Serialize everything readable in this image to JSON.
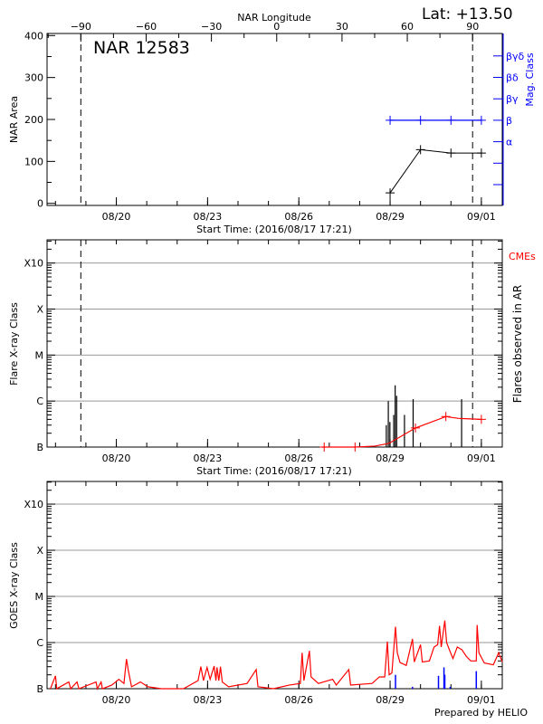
{
  "header": {
    "lat_label": "Lat: +13.50",
    "ar_label": "NAR 12583",
    "longitude_axis_label": "NAR Longitude"
  },
  "footer": {
    "prepared_by": "Prepared by HELIO"
  },
  "colors": {
    "axis": "#000000",
    "grid": "#999999",
    "mag_class": "#0000ff",
    "cme": "#ff0000",
    "goes_long": "#ff0000",
    "goes_short": "#0000ff"
  },
  "chart_data": [
    {
      "type": "line",
      "panel": "nar-area",
      "ylabel": "NAR Area",
      "y2label": "Mag. Class",
      "xlabel": "Start Time: (2016/08/17 17:21)",
      "xlim": [
        "2016-08-17 17:21",
        "2016-09-01 16:30"
      ],
      "ylim": [
        -5,
        405
      ],
      "yticks": [
        0,
        100,
        200,
        300,
        400
      ],
      "xticks": [
        {
          "date": "2016-08-20 00:00",
          "label": "08/20"
        },
        {
          "date": "2016-08-23 00:00",
          "label": "08/23"
        },
        {
          "date": "2016-08-26 00:00",
          "label": "08/26"
        },
        {
          "date": "2016-08-29 00:00",
          "label": "08/29"
        },
        {
          "date": "2016-09-01 00:00",
          "label": "09/01"
        }
      ],
      "longitude_ticks": [
        {
          "lon": -90,
          "label": "−90"
        },
        {
          "lon": -60,
          "label": "−60"
        },
        {
          "lon": -30,
          "label": "−30"
        },
        {
          "lon": 0,
          "label": "0"
        },
        {
          "lon": 30,
          "label": "30"
        },
        {
          "lon": 60,
          "label": "60"
        },
        {
          "lon": 90,
          "label": "90"
        }
      ],
      "limb_crossings": {
        "east_minus90": "2016-08-18 20:00",
        "west_plus90": "2016-08-31 17:05"
      },
      "area_series": [
        [
          "2016-08-29 00:00",
          25
        ],
        [
          "2016-08-30 00:00",
          128
        ],
        [
          "2016-08-31 00:00",
          120
        ],
        [
          "2016-09-01 00:00",
          120
        ]
      ],
      "mag_class_levels": [
        "",
        "",
        "α",
        "β",
        "βγ",
        "βδ",
        "βγδ"
      ],
      "mag_class_series": [
        [
          "2016-08-29 00:00",
          "β"
        ],
        [
          "2016-08-30 00:00",
          "β"
        ],
        [
          "2016-08-31 00:00",
          "β"
        ],
        [
          "2016-09-01 00:00",
          "β"
        ]
      ]
    },
    {
      "type": "bar",
      "panel": "flares",
      "ylabel": "Flare X-ray Class",
      "y2label": "Flares observed in AR",
      "legend_cme": "CMEs",
      "xlabel": "Start Time: (2016/08/17 17:21)",
      "yscale": "log",
      "ylim": [
        1e-07,
        0.0032
      ],
      "yticks": [
        {
          "v": 1e-07,
          "label": "B"
        },
        {
          "v": 1e-06,
          "label": "C"
        },
        {
          "v": 1e-05,
          "label": "M"
        },
        {
          "v": 0.0001,
          "label": "X"
        },
        {
          "v": 0.001,
          "label": "X10"
        }
      ],
      "grid": true,
      "flares": [
        [
          "2016-08-28 21:00",
          3e-07
        ],
        [
          "2016-08-28 22:35",
          1e-06
        ],
        [
          "2016-08-28 23:50",
          3.5e-07
        ],
        [
          "2016-08-29 02:50",
          5e-07
        ],
        [
          "2016-08-29 04:00",
          2.2e-06
        ],
        [
          "2016-08-29 05:10",
          1.3e-06
        ],
        [
          "2016-08-29 11:20",
          5e-07
        ],
        [
          "2016-08-29 18:10",
          1.1e-06
        ],
        [
          "2016-08-31 08:25",
          1.1e-06
        ]
      ],
      "cme_series": [
        [
          "2016-08-26 18:00",
          1e-07
        ],
        [
          "2016-08-26 20:00",
          1e-07
        ],
        [
          "2016-08-27 20:20",
          1e-07
        ],
        [
          "2016-08-28 12:00",
          1.05e-07
        ],
        [
          "2016-08-28 23:00",
          1.2e-07
        ],
        [
          "2016-08-29 20:00",
          2.6e-07
        ],
        [
          "2016-08-30 20:00",
          4.6e-07
        ],
        [
          "2016-08-31 06:00",
          4.2e-07
        ],
        [
          "2016-09-01 00:00",
          4e-07
        ]
      ],
      "cme_markers": [
        "2016-08-26 20:00",
        "2016-08-27 20:20",
        "2016-08-29 20:00",
        "2016-08-30 20:00",
        "2016-09-01 00:00"
      ]
    },
    {
      "type": "line",
      "panel": "goes",
      "ylabel": "GOES X-ray Class",
      "yscale": "log",
      "ylim": [
        1e-07,
        0.0031
      ],
      "yticks": [
        {
          "v": 1e-07,
          "label": "B"
        },
        {
          "v": 1e-06,
          "label": "C"
        },
        {
          "v": 1e-05,
          "label": "M"
        },
        {
          "v": 0.0001,
          "label": "X"
        },
        {
          "v": 0.001,
          "label": "X10"
        }
      ],
      "grid": true,
      "long_channel": [
        [
          "2016-08-17 20:00",
          9e-08
        ],
        [
          "2016-08-18 00:00",
          1.9e-07
        ],
        [
          "2016-08-18 01:00",
          9e-08
        ],
        [
          "2016-08-18 10:30",
          1.4e-07
        ],
        [
          "2016-08-18 12:00",
          9e-08
        ],
        [
          "2016-08-18 17:00",
          1.4e-07
        ],
        [
          "2016-08-18 18:30",
          9e-08
        ],
        [
          "2016-08-19 08:00",
          1.4e-07
        ],
        [
          "2016-08-19 09:00",
          9e-08
        ],
        [
          "2016-08-19 12:00",
          1.4e-07
        ],
        [
          "2016-08-19 13:00",
          9e-08
        ],
        [
          "2016-08-19 20:30",
          1.2e-07
        ],
        [
          "2016-08-20 02:00",
          1.6e-07
        ],
        [
          "2016-08-20 06:00",
          1.3e-07
        ],
        [
          "2016-08-20 08:00",
          4.4e-07
        ],
        [
          "2016-08-20 09:20",
          2.6e-07
        ],
        [
          "2016-08-20 12:00",
          1.1e-07
        ],
        [
          "2016-08-20 19:00",
          1.4e-07
        ],
        [
          "2016-08-21 01:00",
          1.1e-07
        ],
        [
          "2016-08-21 11:30",
          9e-08
        ],
        [
          "2016-08-22 05:00",
          9e-08
        ],
        [
          "2016-08-22 16:30",
          1.5e-07
        ],
        [
          "2016-08-22 18:40",
          3e-07
        ],
        [
          "2016-08-22 20:45",
          1.5e-07
        ],
        [
          "2016-08-22 23:35",
          2.9e-07
        ],
        [
          "2016-08-23 02:00",
          1.6e-07
        ],
        [
          "2016-08-23 05:10",
          3.1e-07
        ],
        [
          "2016-08-23 06:35",
          1.5e-07
        ],
        [
          "2016-08-23 07:25",
          2.9e-07
        ],
        [
          "2016-08-23 08:50",
          1.5e-07
        ],
        [
          "2016-08-23 10:10",
          3e-07
        ],
        [
          "2016-08-23 11:35",
          1.4e-07
        ],
        [
          "2016-08-23 16:35",
          1.1e-07
        ],
        [
          "2016-08-24 07:10",
          1.3e-07
        ],
        [
          "2016-08-24 14:20",
          2.6e-07
        ],
        [
          "2016-08-24 15:45",
          1.1e-07
        ],
        [
          "2016-08-25 04:00",
          9e-08
        ],
        [
          "2016-08-25 16:40",
          1.2e-07
        ],
        [
          "2016-08-26 01:10",
          1.3e-07
        ],
        [
          "2016-08-26 02:35",
          6e-07
        ],
        [
          "2016-08-26 04:00",
          1.5e-07
        ],
        [
          "2016-08-26 08:20",
          6.6e-07
        ],
        [
          "2016-08-26 09:40",
          1.8e-07
        ],
        [
          "2016-08-26 15:25",
          1.3e-07
        ],
        [
          "2016-08-27 02:40",
          1.6e-07
        ],
        [
          "2016-08-27 05:30",
          1.2e-07
        ],
        [
          "2016-08-27 15:25",
          2.6e-07
        ],
        [
          "2016-08-27 16:50",
          1.2e-07
        ],
        [
          "2016-08-28 09:50",
          1.3e-07
        ],
        [
          "2016-08-28 15:30",
          1.8e-07
        ],
        [
          "2016-08-28 19:45",
          1.8e-07
        ],
        [
          "2016-08-28 21:50",
          1.05e-06
        ],
        [
          "2016-08-28 23:15",
          2e-07
        ],
        [
          "2016-08-29 01:25",
          2.2e-07
        ],
        [
          "2016-08-29 04:15",
          2.2e-06
        ],
        [
          "2016-08-29 05:40",
          6e-07
        ],
        [
          "2016-08-29 07:50",
          3.7e-07
        ],
        [
          "2016-08-29 12:45",
          3.2e-07
        ],
        [
          "2016-08-29 17:40",
          1.2e-06
        ],
        [
          "2016-08-29 19:05",
          3.8e-07
        ],
        [
          "2016-08-30 00:00",
          9e-07
        ],
        [
          "2016-08-30 01:25",
          3.8e-07
        ],
        [
          "2016-08-30 07:00",
          4e-07
        ],
        [
          "2016-08-30 10:40",
          8e-07
        ],
        [
          "2016-08-30 13:30",
          9e-07
        ],
        [
          "2016-08-30 15:00",
          2.3e-06
        ],
        [
          "2016-08-30 16:20",
          8e-07
        ],
        [
          "2016-08-30 19:10",
          3e-06
        ],
        [
          "2016-08-30 20:35",
          1e-06
        ],
        [
          "2016-08-30 22:45",
          7e-07
        ],
        [
          "2016-08-31 01:35",
          4.5e-07
        ],
        [
          "2016-08-31 05:00",
          8e-07
        ],
        [
          "2016-08-31 08:40",
          7e-07
        ],
        [
          "2016-08-31 12:10",
          5e-07
        ],
        [
          "2016-08-31 15:40",
          4e-07
        ],
        [
          "2016-08-31 20:00",
          4e-07
        ],
        [
          "2016-08-31 20:40",
          2.4e-06
        ],
        [
          "2016-08-31 22:05",
          6e-07
        ],
        [
          "2016-09-01 02:20",
          3.6e-07
        ],
        [
          "2016-09-01 09:25",
          3.3e-07
        ],
        [
          "2016-09-01 13:40",
          6e-07
        ],
        [
          "2016-09-01 16:30",
          3.8e-07
        ]
      ],
      "short_channel": [
        [
          "2016-08-29 04:15",
          2e-07
        ],
        [
          "2016-08-29 17:40",
          1.1e-07
        ],
        [
          "2016-08-30 14:10",
          1.9e-07
        ],
        [
          "2016-08-30 18:30",
          2.9e-07
        ],
        [
          "2016-08-30 19:10",
          2e-07
        ],
        [
          "2016-08-30 23:25",
          1.1e-07
        ],
        [
          "2016-08-31 20:00",
          2.4e-07
        ]
      ]
    }
  ]
}
